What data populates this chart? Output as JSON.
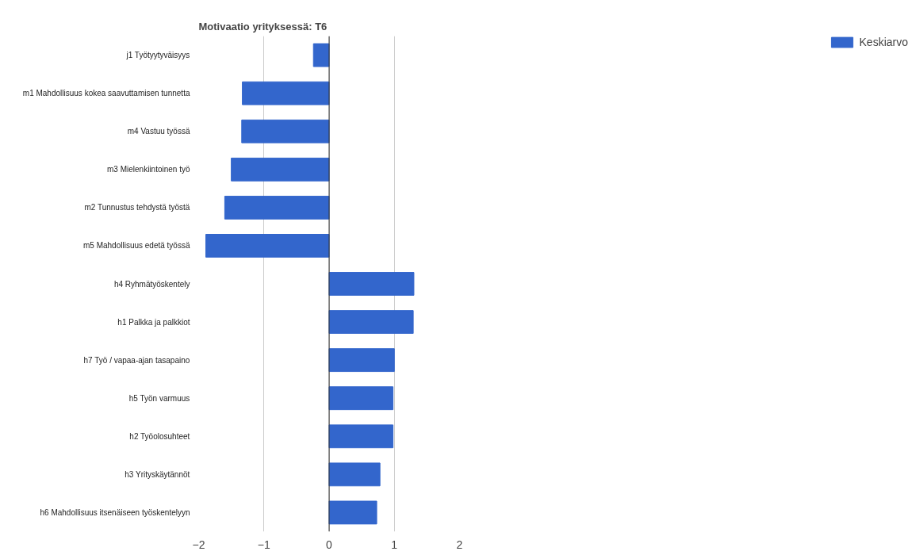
{
  "chart_data": {
    "type": "bar",
    "orientation": "horizontal",
    "title": "Motivaatio yrityksessä: T6",
    "categories": [
      "j1 Työtyytyväisyys",
      "m1 Mahdollisuus kokea saavuttamisen tunnetta",
      "m4 Vastuu työssä",
      "m3 Mielenkiintoinen työ",
      "m2 Tunnustus tehdystä työstä",
      "m5 Mahdollisuus edetä työssä",
      "h4 Ryhmätyöskentely",
      "h1 Palkka ja palkkiot",
      "h7 Työ / vapaa-ajan tasapaino",
      "h5 Työn varmuus",
      "h2 Työolosuhteet",
      "h3 Yrityskäytännöt",
      "h6 Mahdollisuus itsenäiseen työskentelyyn"
    ],
    "series": [
      {
        "name": "Keskiarvo",
        "color": "#3366cc",
        "values": [
          -0.24,
          -1.33,
          -1.34,
          -1.5,
          -1.6,
          -1.89,
          1.3,
          1.29,
          1.0,
          0.98,
          0.98,
          0.78,
          0.73
        ]
      }
    ],
    "xlim": [
      -2,
      2
    ],
    "xticks": [
      -2,
      -1,
      0,
      1,
      2
    ],
    "grid": "x",
    "legend": "top right"
  }
}
